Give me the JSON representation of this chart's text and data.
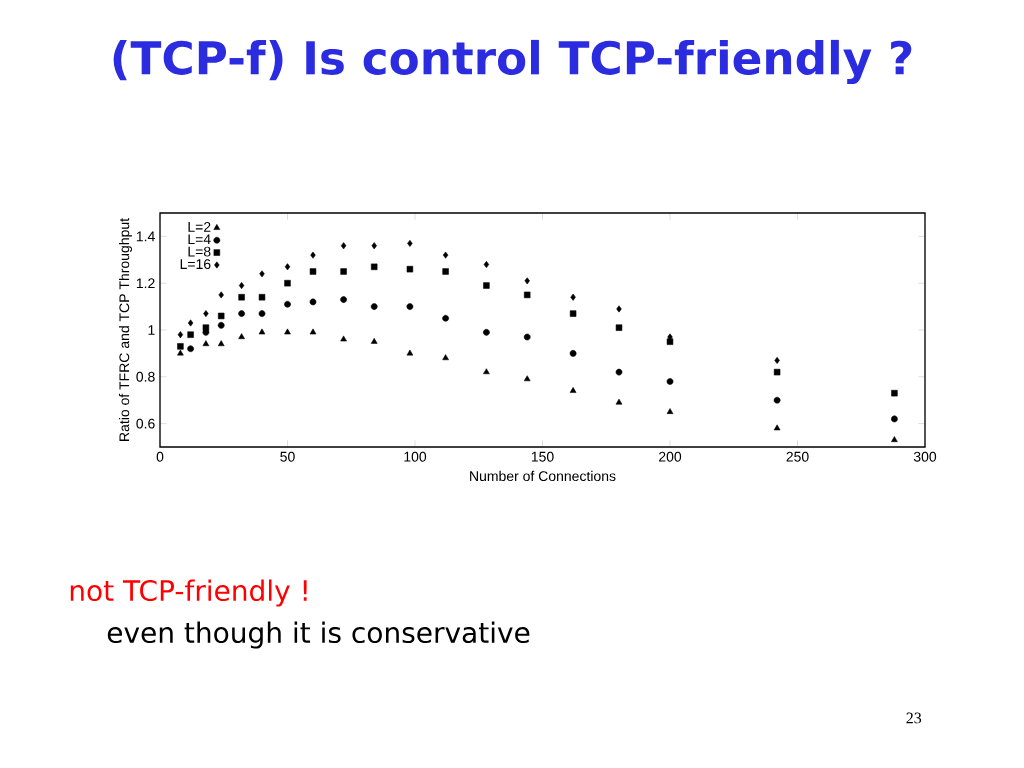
{
  "chart_data": {
    "type": "scatter",
    "title": "(TCP-f) Is control TCP-friendly ?",
    "xlabel": "Number of Connections",
    "ylabel": "Ratio of TFRC and TCP Throughput",
    "x": [
      8,
      12,
      18,
      24,
      32,
      40,
      50,
      60,
      72,
      84,
      98,
      112,
      128,
      144,
      162,
      180,
      200,
      242,
      288
    ],
    "series": [
      {
        "name": "L=2",
        "color": "#000000",
        "marker": "triangle",
        "values": [
          0.9,
          null,
          0.94,
          0.94,
          0.97,
          0.99,
          0.99,
          0.99,
          0.96,
          0.95,
          0.9,
          0.88,
          0.82,
          0.79,
          0.74,
          0.69,
          0.65,
          0.58,
          0.53
        ]
      },
      {
        "name": "L=4",
        "color": "#000000",
        "marker": "circle",
        "values": [
          null,
          0.92,
          0.99,
          1.02,
          1.07,
          1.07,
          1.11,
          1.12,
          1.13,
          1.1,
          1.1,
          1.05,
          0.99,
          0.97,
          0.9,
          0.82,
          0.78,
          0.7,
          0.62
        ]
      },
      {
        "name": "L=8",
        "color": "#000000",
        "marker": "square",
        "values": [
          0.93,
          0.98,
          1.01,
          1.06,
          1.14,
          1.14,
          1.2,
          1.25,
          1.25,
          1.27,
          1.26,
          1.25,
          1.19,
          1.15,
          1.07,
          1.01,
          0.95,
          0.82,
          0.73
        ]
      },
      {
        "name": "L=16",
        "color": "#000000",
        "marker": "diamond",
        "values": [
          0.98,
          1.03,
          1.07,
          1.15,
          1.19,
          1.24,
          1.27,
          1.32,
          1.36,
          1.36,
          1.37,
          1.32,
          1.28,
          1.21,
          1.14,
          1.09,
          0.97,
          0.87,
          null
        ]
      }
    ],
    "xlim": [
      0,
      300
    ],
    "ylim": [
      0.5,
      1.5
    ],
    "xticks": [
      0,
      50,
      100,
      150,
      200,
      250,
      300
    ],
    "yticks": [
      0.6,
      0.8,
      1,
      1.2,
      1.4
    ],
    "grid": false,
    "legend": "top left",
    "annotations": [
      "not TCP-friendly !",
      "even though it is conservative",
      "23"
    ]
  }
}
